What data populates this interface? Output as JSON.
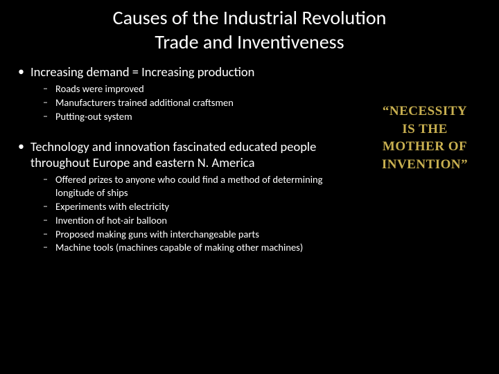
{
  "title": {
    "line1": "Causes of the Industrial Revolution",
    "line2": "Trade and Inventiveness"
  },
  "bullets": [
    {
      "text": "Increasing demand = Increasing production",
      "subs": [
        "Roads were improved",
        "Manufacturers trained additional craftsmen",
        "Putting-out system"
      ]
    },
    {
      "text": "Technology and innovation fascinated educated people throughout Europe and eastern N. America",
      "subs": [
        "Offered prizes to anyone who could find a method of determining longitude of ships",
        "Experiments with electricity",
        "Invention of hot-air balloon",
        "Proposed making guns with interchangeable parts",
        "Machine tools (machines capable of making other machines)"
      ]
    }
  ],
  "quote": {
    "line1": "“Necessity",
    "line2": "is the",
    "line3": "mother of",
    "line4": "invention”",
    "color": "#c9b050"
  }
}
